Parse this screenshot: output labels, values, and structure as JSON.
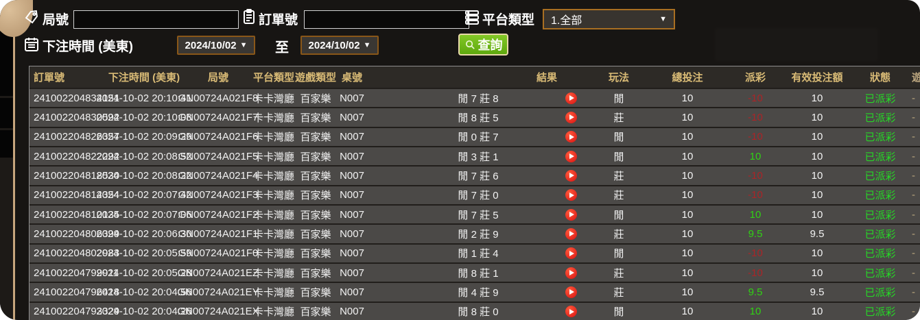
{
  "filters": {
    "round_label": "局號",
    "order_label": "訂單號",
    "platform_label": "平台類型",
    "platform_value": "1.全部",
    "bet_time_label": "下注時間 (美東)",
    "date_from": "2024/10/02",
    "to_label": "至",
    "date_to": "2024/10/02",
    "search_label": "查詢"
  },
  "table": {
    "headers": [
      "訂單號",
      "下注時間 (美東)",
      "局號",
      "平台類型",
      "遊戲類型",
      "桌號",
      "結果",
      "玩法",
      "總投注",
      "派彩",
      "有效投注額",
      "狀態",
      "遊戲模式"
    ],
    "colors": {
      "header_text": "#d9bb76",
      "positive": "#30d214",
      "negative": "#ab2427",
      "status_green": "#26d826",
      "search_button": "#6ab417",
      "date_border": "#8a5718"
    },
    "rows": [
      {
        "order": "241002204834151",
        "time": "2024-10-02 20:10:41",
        "round": "GN00724A021F8",
        "platform": "卡卡灣廳",
        "game": "百家樂",
        "table_no": "N007",
        "result": "閒 7 莊 8",
        "play": "閒",
        "total_bet": "10",
        "payout": "-10",
        "valid_bet": "10",
        "status": "已派彩",
        "mode": "-"
      },
      {
        "order": "241002204830592",
        "time": "2024-10-02 20:10:08",
        "round": "GN00724A021F7",
        "platform": "卡卡灣廳",
        "game": "百家樂",
        "table_no": "N007",
        "result": "閒 8 莊 5",
        "play": "莊",
        "total_bet": "10",
        "payout": "-10",
        "valid_bet": "10",
        "status": "已派彩",
        "mode": "-"
      },
      {
        "order": "241002204826357",
        "time": "2024-10-02 20:09:29",
        "round": "GN00724A021F6",
        "platform": "卡卡灣廳",
        "game": "百家樂",
        "table_no": "N007",
        "result": "閒 0 莊 7",
        "play": "閒",
        "total_bet": "10",
        "payout": "-10",
        "valid_bet": "10",
        "status": "已派彩",
        "mode": "-"
      },
      {
        "order": "241002204822292",
        "time": "2024-10-02 20:08:52",
        "round": "GN00724A021F5",
        "platform": "卡卡灣廳",
        "game": "百家樂",
        "table_no": "N007",
        "result": "閒 3 莊 1",
        "play": "閒",
        "total_bet": "10",
        "payout": "10",
        "valid_bet": "10",
        "status": "已派彩",
        "mode": "-"
      },
      {
        "order": "241002204818530",
        "time": "2024-10-02 20:08:22",
        "round": "GN00724A021F4",
        "platform": "卡卡灣廳",
        "game": "百家樂",
        "table_no": "N007",
        "result": "閒 7 莊 6",
        "play": "莊",
        "total_bet": "10",
        "payout": "-10",
        "valid_bet": "10",
        "status": "已派彩",
        "mode": "-"
      },
      {
        "order": "241002204814354",
        "time": "2024-10-02 20:07:42",
        "round": "GN00724A021F3",
        "platform": "卡卡灣廳",
        "game": "百家樂",
        "table_no": "N007",
        "result": "閒 7 莊 0",
        "play": "莊",
        "total_bet": "10",
        "payout": "-10",
        "valid_bet": "10",
        "status": "已派彩",
        "mode": "-"
      },
      {
        "order": "241002204810135",
        "time": "2024-10-02 20:07:06",
        "round": "GN00724A021F2",
        "platform": "卡卡灣廳",
        "game": "百家樂",
        "table_no": "N007",
        "result": "閒 7 莊 5",
        "play": "閒",
        "total_bet": "10",
        "payout": "10",
        "valid_bet": "10",
        "status": "已派彩",
        "mode": "-"
      },
      {
        "order": "241002204806399",
        "time": "2024-10-02 20:06:30",
        "round": "GN00724A021F1",
        "platform": "卡卡灣廳",
        "game": "百家樂",
        "table_no": "N007",
        "result": "閒 2 莊 9",
        "play": "莊",
        "total_bet": "10",
        "payout": "9.5",
        "valid_bet": "9.5",
        "status": "已派彩",
        "mode": "-"
      },
      {
        "order": "241002204802983",
        "time": "2024-10-02 20:05:59",
        "round": "GN00724A021F0",
        "platform": "卡卡灣廳",
        "game": "百家樂",
        "table_no": "N007",
        "result": "閒 1 莊 4",
        "play": "閒",
        "total_bet": "10",
        "payout": "-10",
        "valid_bet": "10",
        "status": "已派彩",
        "mode": "-"
      },
      {
        "order": "241002204799911",
        "time": "2024-10-02 20:05:28",
        "round": "GN00724A021EZ",
        "platform": "卡卡灣廳",
        "game": "百家樂",
        "table_no": "N007",
        "result": "閒 8 莊 1",
        "play": "莊",
        "total_bet": "10",
        "payout": "-10",
        "valid_bet": "10",
        "status": "已派彩",
        "mode": "-"
      },
      {
        "order": "241002204796418",
        "time": "2024-10-02 20:04:56",
        "round": "GN00724A021EY",
        "platform": "卡卡灣廳",
        "game": "百家樂",
        "table_no": "N007",
        "result": "閒 4 莊 9",
        "play": "莊",
        "total_bet": "10",
        "payout": "9.5",
        "valid_bet": "9.5",
        "status": "已派彩",
        "mode": "-"
      },
      {
        "order": "241002204793329",
        "time": "2024-10-02 20:04:26",
        "round": "GN00724A021EX",
        "platform": "卡卡灣廳",
        "game": "百家樂",
        "table_no": "N007",
        "result": "閒 8 莊 0",
        "play": "閒",
        "total_bet": "10",
        "payout": "10",
        "valid_bet": "10",
        "status": "已派彩",
        "mode": "-"
      }
    ]
  }
}
